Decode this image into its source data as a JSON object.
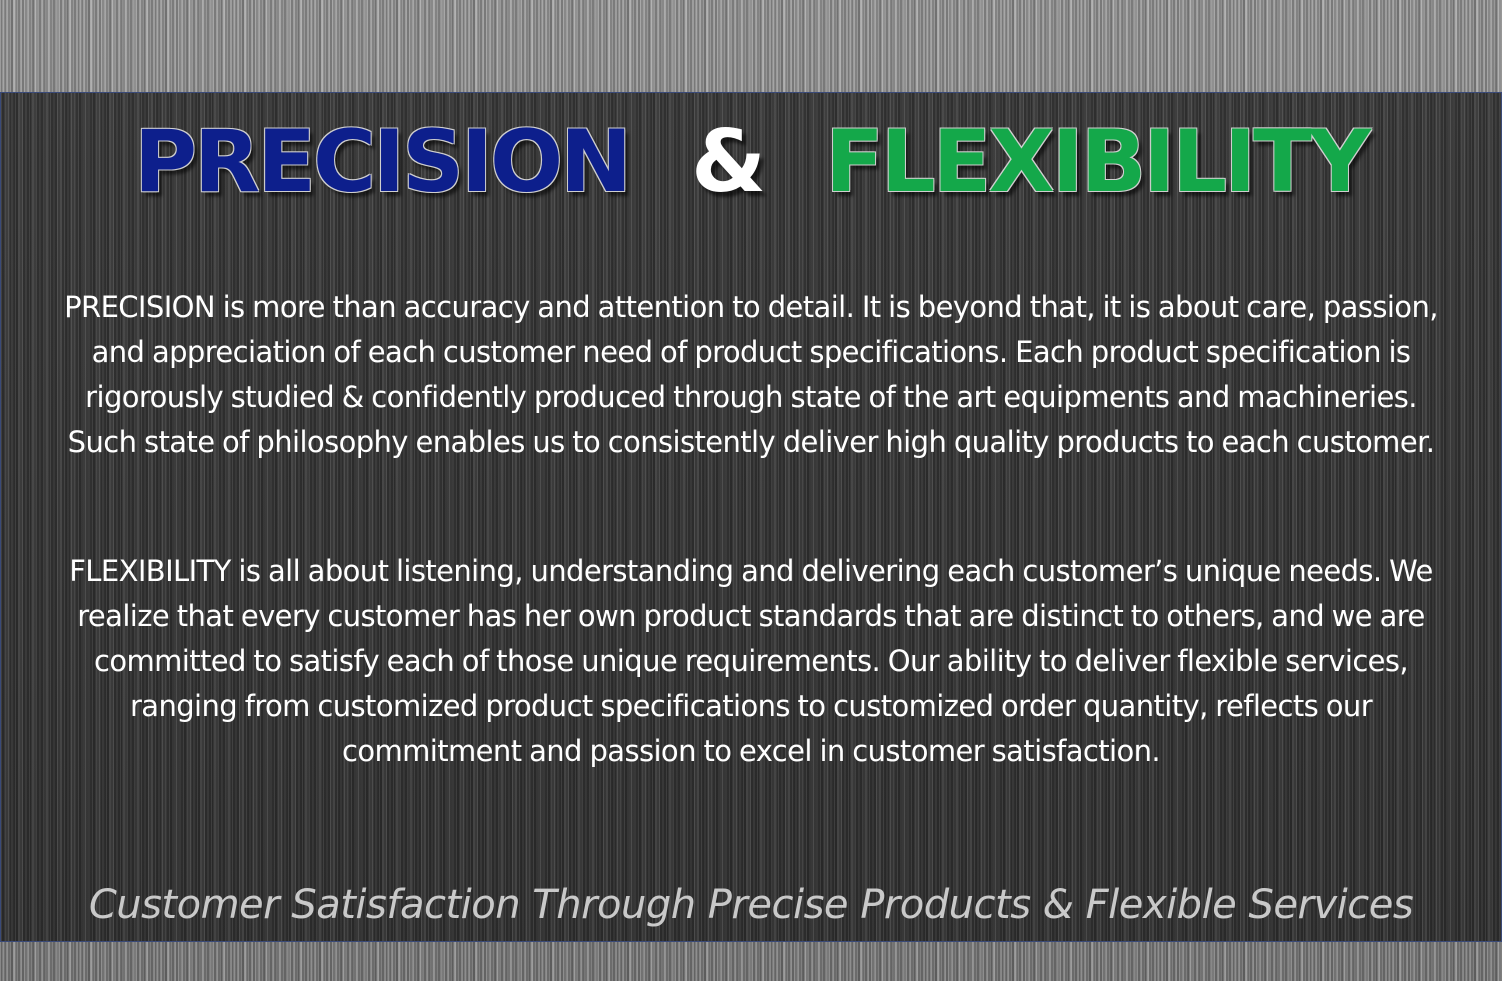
{
  "headline": {
    "word1": "PRECISION",
    "ampersand": "&",
    "word2": "FLEXIBILITY"
  },
  "paragraphs": {
    "precision": "PRECISION is more than accuracy and attention to detail. It is beyond that, it is about care, passion, and appreciation of each customer need of product specifications. Each product specification is rigorously studied & confidently produced through state of the art equipments and machineries. Such state of philosophy enables us to consistently deliver high quality products to each customer.",
    "flexibility": "FLEXIBILITY is all about listening, understanding and delivering each customer’s unique needs. We realize that every customer has her own product standards that are distinct to others, and we are committed to satisfy each of those unique requirements. Our ability to deliver flexible services, ranging from customized product specifications to customized order quantity, reflects our commitment and passion to excel in customer satisfaction."
  },
  "tagline": "Customer Satisfaction Through Precise Products & Flexible Services",
  "colors": {
    "precision_word": "#0d1f8c",
    "flexibility_word": "#14a84a",
    "ampersand": "#ffffff",
    "body_text": "#ffffff",
    "tagline_text": "#c9c9c9",
    "panel_background": "#3a3a3a",
    "outer_background": "#8e8e8e"
  }
}
